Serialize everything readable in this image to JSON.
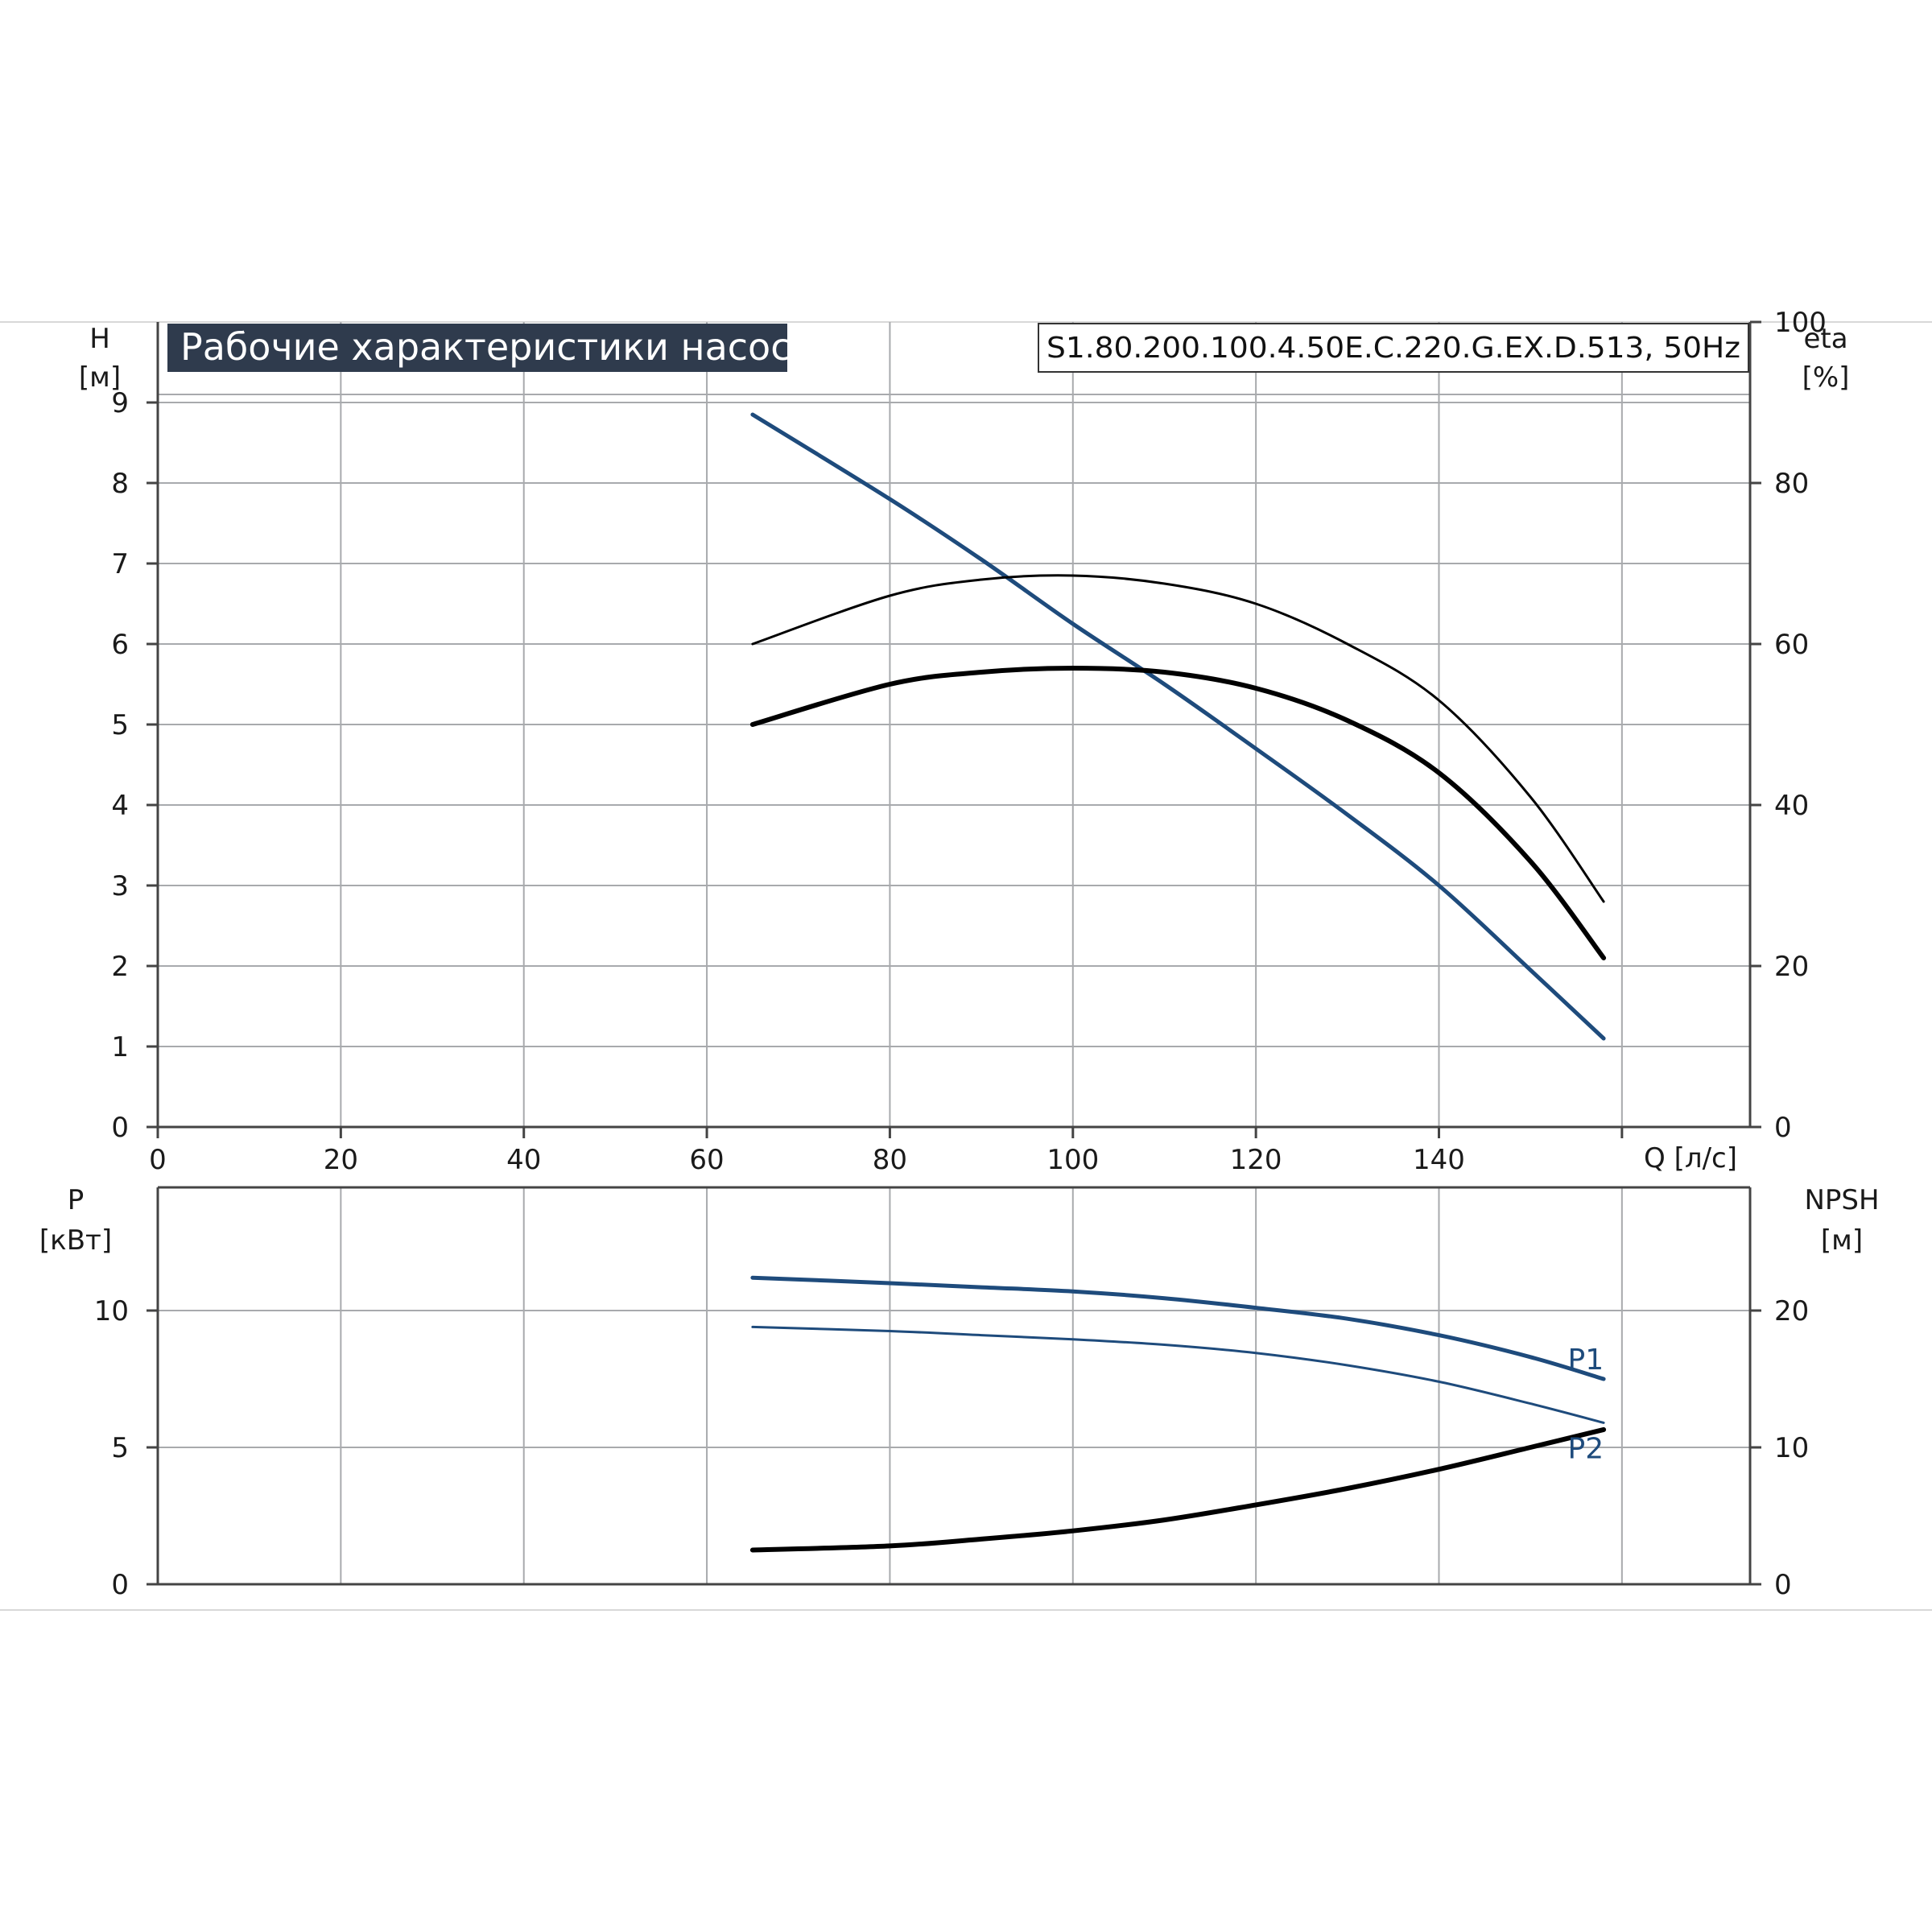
{
  "chart_data": [
    {
      "type": "line",
      "title": "Рабочие характеристики насоса",
      "model": "S1.80.200.100.4.50E.C.220.G.EX.D.513, 50Hz",
      "xlabel": "Q [л/с]",
      "ylabel_top": "H",
      "ylabel_unit": "[м]",
      "y2label_top": "eta",
      "y2label_unit": "[%]",
      "xlim": [
        0,
        174
      ],
      "ylim": [
        0,
        10
      ],
      "y2lim": [
        0,
        100
      ],
      "x_ticks": [
        0,
        20,
        40,
        60,
        80,
        100,
        120,
        140
      ],
      "y_ticks": [
        0,
        1,
        2,
        3,
        4,
        5,
        6,
        7,
        8,
        9
      ],
      "y2_ticks": [
        0,
        20,
        40,
        60,
        80,
        100
      ],
      "grid": true,
      "series": [
        {
          "axis": "left",
          "color": "#1e4b7c",
          "x": [
            65,
            80,
            90,
            100,
            110,
            120,
            130,
            140,
            150,
            158
          ],
          "values": [
            8.85,
            7.8,
            7.05,
            6.25,
            5.5,
            4.7,
            3.88,
            3.0,
            1.95,
            1.1
          ]
        },
        {
          "axis": "right",
          "color": "#000000",
          "x": [
            65,
            80,
            90,
            100,
            110,
            120,
            130,
            140,
            150,
            158
          ],
          "values": [
            60,
            66,
            68,
            68.5,
            67.5,
            65,
            60,
            53,
            41,
            28
          ]
        },
        {
          "axis": "right",
          "color": "#000000",
          "x": [
            65,
            80,
            90,
            100,
            110,
            120,
            130,
            140,
            150,
            158
          ],
          "values": [
            50,
            55,
            56.5,
            57,
            56.5,
            54.5,
            50.5,
            44,
            33,
            21
          ]
        }
      ]
    },
    {
      "type": "line",
      "ylabel_top": "P",
      "ylabel_unit": "[кВт]",
      "y2label_top": "NPSH",
      "y2label_unit": "[м]",
      "xlim": [
        0,
        174
      ],
      "ylim": [
        0,
        14.5
      ],
      "y2lim": [
        0,
        29
      ],
      "y_ticks": [
        0,
        5,
        10
      ],
      "y2_ticks": [
        0,
        10,
        20
      ],
      "grid": true,
      "series": [
        {
          "name": "P1",
          "axis": "left",
          "color": "#1e4b7c",
          "x": [
            65,
            80,
            90,
            100,
            110,
            120,
            130,
            140,
            150,
            158
          ],
          "values": [
            11.2,
            11.0,
            10.85,
            10.7,
            10.45,
            10.1,
            9.7,
            9.1,
            8.3,
            7.5
          ]
        },
        {
          "name": "P2",
          "axis": "left",
          "color": "#1e4b7c",
          "x": [
            65,
            80,
            90,
            100,
            110,
            120,
            130,
            140,
            150,
            158
          ],
          "values": [
            9.4,
            9.25,
            9.1,
            8.95,
            8.75,
            8.45,
            8.0,
            7.4,
            6.6,
            5.9
          ]
        },
        {
          "axis": "right",
          "color": "#000000",
          "x": [
            65,
            80,
            90,
            100,
            110,
            120,
            130,
            140,
            150,
            158
          ],
          "values": [
            2.5,
            2.8,
            3.3,
            3.9,
            4.7,
            5.8,
            7.0,
            8.4,
            10.0,
            11.3
          ]
        }
      ]
    }
  ]
}
